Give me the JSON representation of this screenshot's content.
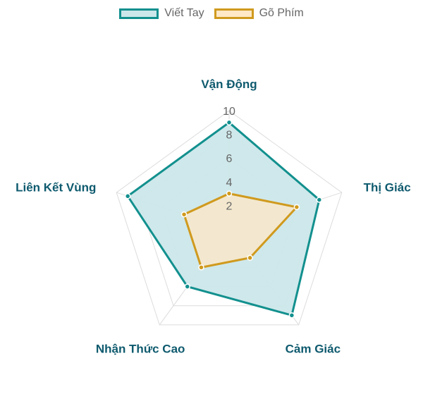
{
  "chart_data": {
    "type": "radar",
    "categories": [
      "Vận Động",
      "Thị Giác",
      "Cảm Giác",
      "Nhận Thức Cao",
      "Liên Kết Vùng"
    ],
    "r_range": [
      0,
      10
    ],
    "ticks": [
      "2",
      "4",
      "6",
      "8",
      "10"
    ],
    "tick_values": [
      2,
      4,
      6,
      8,
      10
    ],
    "grid": true,
    "legend_position": "top",
    "series": [
      {
        "name": "Viết Tay",
        "values": [
          9,
          8,
          9,
          6,
          9
        ],
        "stroke": "#12908e",
        "fill": "#cce7ea"
      },
      {
        "name": "Gõ Phím",
        "values": [
          3,
          6,
          3,
          4,
          4
        ],
        "stroke": "#d09a1e",
        "fill": "#ffe8c5"
      }
    ]
  },
  "colors": {
    "label": "#0e5a6e",
    "tick": "#666666",
    "grid": "#dcdcdc"
  }
}
